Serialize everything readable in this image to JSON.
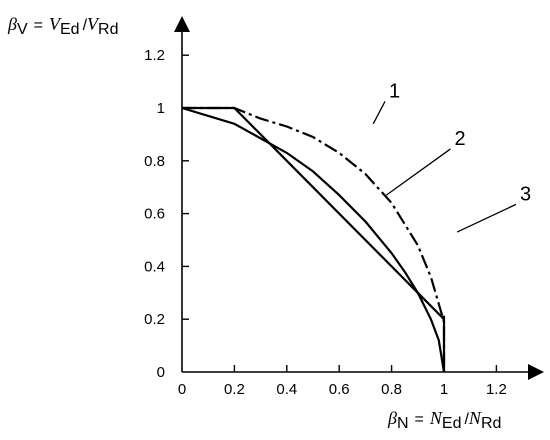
{
  "chart_data": {
    "type": "line",
    "title": "",
    "xlabel": {
      "beta": "β",
      "beta_sub": "N",
      "eq": "=",
      "num": "N",
      "num_sub": "Ed",
      "slash": "/",
      "den": "N",
      "den_sub": "Rd"
    },
    "ylabel": {
      "beta": "β",
      "beta_sub": "V",
      "eq": "=",
      "num": "V",
      "num_sub": "Ed",
      "slash": "/",
      "den": "V",
      "den_sub": "Rd"
    },
    "xlim": [
      0,
      1.3
    ],
    "ylim": [
      0,
      1.3
    ],
    "x_ticks": [
      0,
      0.2,
      0.4,
      0.6,
      0.8,
      1,
      1.2
    ],
    "x_tick_labels": [
      "0",
      "0.2",
      "0.4",
      "0.6",
      "0.8",
      "1",
      "1.2"
    ],
    "y_ticks": [
      0,
      0.2,
      0.4,
      0.6,
      0.8,
      1,
      1.2
    ],
    "y_tick_labels": [
      "0",
      "0.2",
      "0.4",
      "0.6",
      "0.8",
      "1",
      "1.2"
    ],
    "grid": false,
    "series": [
      {
        "name": "1",
        "style": "dash-dot",
        "x": [
          0,
          0.2,
          0.3,
          0.4,
          0.5,
          0.6,
          0.7,
          0.8,
          0.9,
          0.95,
          1,
          1
        ],
        "y": [
          1,
          1,
          0.96,
          0.93,
          0.89,
          0.83,
          0.75,
          0.64,
          0.48,
          0.36,
          0.19,
          0
        ]
      },
      {
        "name": "2",
        "style": "solid",
        "x": [
          0,
          0.2,
          0.3,
          0.4,
          0.5,
          0.6,
          0.7,
          0.8,
          0.9,
          1,
          1,
          1
        ],
        "y": [
          1,
          1,
          0.9,
          0.8,
          0.7,
          0.6,
          0.5,
          0.4,
          0.3,
          0.2,
          0.21,
          0
        ]
      },
      {
        "name": "3",
        "style": "solid",
        "x": [
          0,
          0.2,
          0.4,
          0.5,
          0.6,
          0.7,
          0.8,
          0.85,
          0.9,
          0.95,
          0.98,
          1
        ],
        "y": [
          1,
          0.94,
          0.83,
          0.76,
          0.67,
          0.57,
          0.45,
          0.38,
          0.3,
          0.2,
          0.12,
          0
        ]
      }
    ],
    "callouts": [
      {
        "text": "1",
        "tx": 0.79,
        "ty": 1.04,
        "px": 0.73,
        "py": 0.94
      },
      {
        "text": "2",
        "tx": 1.04,
        "ty": 0.86,
        "px": 0.78,
        "py": 0.67
      },
      {
        "text": "3",
        "tx": 1.29,
        "ty": 0.65,
        "px": 1.05,
        "py": 0.53
      }
    ]
  }
}
